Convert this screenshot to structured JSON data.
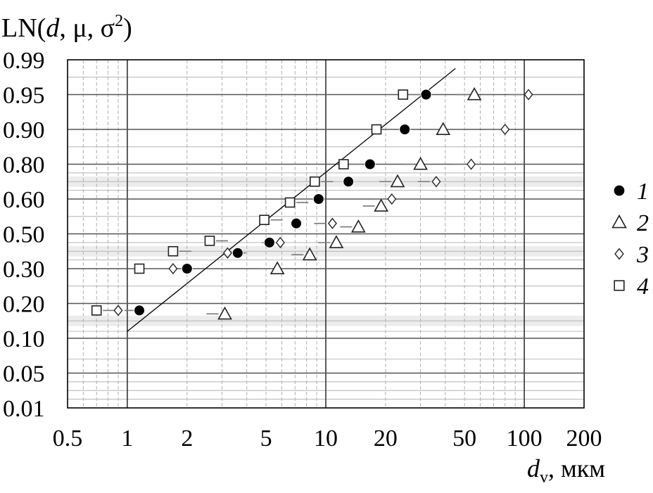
{
  "chart_data": {
    "type": "scatter",
    "title": "",
    "ylabel_prefix": "LN(",
    "ylabel_d": "d",
    "ylabel_mid": ", μ, σ",
    "ylabel_sup": "2",
    "ylabel_suffix": ")",
    "xlabel_main": "d",
    "xlabel_sub": "v",
    "xlabel_unit": ", мкм",
    "x_scale": "log",
    "y_scale": "probability",
    "xlim": [
      0.5,
      200
    ],
    "ylim": [
      0.01,
      0.99
    ],
    "x_ticks": [
      {
        "value": 0.5,
        "label": "0.5"
      },
      {
        "value": 1,
        "label": "1"
      },
      {
        "value": 2,
        "label": "2"
      },
      {
        "value": 5,
        "label": "5"
      },
      {
        "value": 10,
        "label": "10"
      },
      {
        "value": 20,
        "label": "20"
      },
      {
        "value": 50,
        "label": "50"
      },
      {
        "value": 100,
        "label": "100"
      },
      {
        "value": 200,
        "label": "200"
      }
    ],
    "y_ticks": [
      {
        "value": 0.99,
        "label": "0.99"
      },
      {
        "value": 0.95,
        "label": "0.95"
      },
      {
        "value": 0.9,
        "label": "0.90"
      },
      {
        "value": 0.8,
        "label": "0.80"
      },
      {
        "value": 0.6,
        "label": "0.60"
      },
      {
        "value": 0.5,
        "label": "0.50"
      },
      {
        "value": 0.3,
        "label": "0.30"
      },
      {
        "value": 0.2,
        "label": "0.20"
      },
      {
        "value": 0.1,
        "label": "0.10"
      },
      {
        "value": 0.05,
        "label": "0.05"
      },
      {
        "value": 0.01,
        "label": "0.01"
      }
    ],
    "grid": true,
    "legend_position": "right",
    "series": [
      {
        "name": "1",
        "marker": "filled-circle",
        "points": [
          {
            "x": 1.15,
            "y": 0.18
          },
          {
            "x": 2.0,
            "y": 0.3
          },
          {
            "x": 3.6,
            "y": 0.39
          },
          {
            "x": 5.2,
            "y": 0.45
          },
          {
            "x": 7.1,
            "y": 0.53
          },
          {
            "x": 9.2,
            "y": 0.6
          },
          {
            "x": 13.0,
            "y": 0.7
          },
          {
            "x": 16.7,
            "y": 0.8
          },
          {
            "x": 25.0,
            "y": 0.9
          },
          {
            "x": 32.0,
            "y": 0.95
          }
        ]
      },
      {
        "name": "2",
        "marker": "open-triangle",
        "points": [
          {
            "x": 3.1,
            "y": 0.17
          },
          {
            "x": 5.7,
            "y": 0.3
          },
          {
            "x": 8.3,
            "y": 0.38
          },
          {
            "x": 11.3,
            "y": 0.45
          },
          {
            "x": 14.6,
            "y": 0.52
          },
          {
            "x": 19.0,
            "y": 0.58
          },
          {
            "x": 23.0,
            "y": 0.7
          },
          {
            "x": 30.0,
            "y": 0.8
          },
          {
            "x": 39.0,
            "y": 0.9
          },
          {
            "x": 56.0,
            "y": 0.95
          }
        ]
      },
      {
        "name": "3",
        "marker": "open-diamond",
        "points": [
          {
            "x": 0.9,
            "y": 0.18
          },
          {
            "x": 1.7,
            "y": 0.3
          },
          {
            "x": 3.2,
            "y": 0.39
          },
          {
            "x": 5.9,
            "y": 0.45
          },
          {
            "x": 10.8,
            "y": 0.53
          },
          {
            "x": 21.5,
            "y": 0.6
          },
          {
            "x": 36.0,
            "y": 0.7
          },
          {
            "x": 54.0,
            "y": 0.8
          },
          {
            "x": 80.0,
            "y": 0.9
          },
          {
            "x": 105.0,
            "y": 0.95
          }
        ]
      },
      {
        "name": "4",
        "marker": "open-square",
        "points": [
          {
            "x": 0.7,
            "y": 0.18
          },
          {
            "x": 1.15,
            "y": 0.3
          },
          {
            "x": 1.7,
            "y": 0.4
          },
          {
            "x": 2.6,
            "y": 0.46
          },
          {
            "x": 4.9,
            "y": 0.54
          },
          {
            "x": 6.6,
            "y": 0.59
          },
          {
            "x": 8.8,
            "y": 0.7
          },
          {
            "x": 12.3,
            "y": 0.8
          },
          {
            "x": 18.0,
            "y": 0.9
          },
          {
            "x": 24.5,
            "y": 0.95
          }
        ]
      }
    ],
    "fit_line": {
      "x": [
        1.0,
        45.0
      ],
      "y": [
        0.12,
        0.98
      ]
    }
  }
}
